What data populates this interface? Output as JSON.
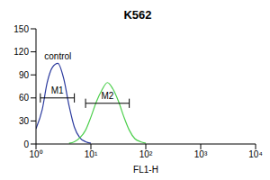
{
  "chart_data": {
    "type": "line",
    "title": "K562",
    "x_label": "FL1-H",
    "log": "x",
    "xlim": [
      1,
      10000
    ],
    "xticks": [
      {
        "value": 1,
        "label": "10⁰"
      },
      {
        "value": 10,
        "label": "10¹"
      },
      {
        "value": 100,
        "label": "10²"
      },
      {
        "value": 1000,
        "label": "10³"
      },
      {
        "value": 10000,
        "label": "10⁴"
      }
    ],
    "ylim": [
      0,
      150
    ],
    "yticks": [
      0,
      30,
      60,
      90,
      120,
      150
    ],
    "grid": false,
    "series": [
      {
        "name": "control",
        "color": "#2b3a9e",
        "x": [
          1,
          1.3,
          1.6,
          2,
          2.5,
          3.2,
          4,
          5,
          6.3,
          8,
          10
        ],
        "values": [
          20,
          45,
          80,
          100,
          105,
          85,
          50,
          22,
          8,
          3,
          1
        ]
      },
      {
        "color": "#4ccf4c",
        "x": [
          4,
          5,
          6.3,
          8,
          10,
          12.6,
          15.8,
          20,
          25,
          32,
          40,
          50,
          63,
          80,
          100
        ],
        "values": [
          1,
          3,
          8,
          18,
          35,
          55,
          70,
          80,
          72,
          55,
          35,
          18,
          7,
          3,
          1
        ]
      }
    ],
    "gates": [
      {
        "label": "M1",
        "x": [
          1.2,
          5
        ],
        "y": 60
      },
      {
        "label": "M2",
        "x": [
          8,
          50
        ],
        "y": 53
      }
    ]
  }
}
